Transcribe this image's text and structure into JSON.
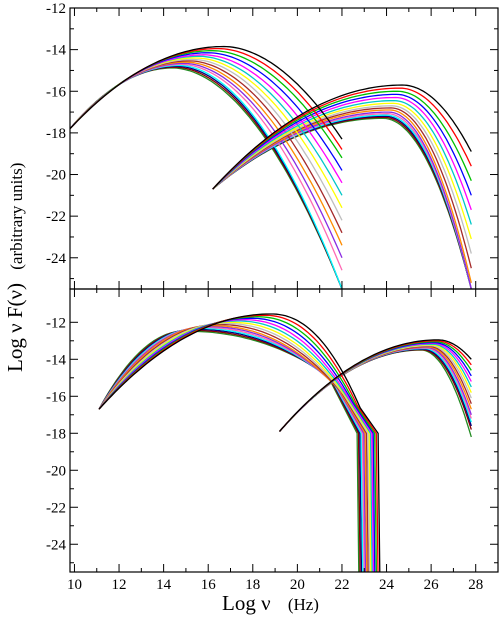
{
  "figure": {
    "ylabel": "Log ν F(ν)",
    "ylabel_units": "(arbitrary units)",
    "xlabel": "Log  ν",
    "xlabel_units": "(Hz)"
  },
  "chart_data": [
    {
      "type": "line",
      "panel": "top",
      "xlim": [
        9.8,
        29.0
      ],
      "ylim": [
        -25.5,
        -12
      ],
      "xticks": [
        10,
        12,
        14,
        16,
        18,
        20,
        22,
        24,
        26,
        28
      ],
      "yticks": [
        -12,
        -14,
        -16,
        -18,
        -20,
        -22,
        -24
      ],
      "ytick_labels": [
        "-12",
        "-14",
        "-16",
        "-18",
        "-20",
        "-22",
        "-24"
      ],
      "x_tick_labels_shown": false,
      "grid": false,
      "colors": [
        "#000000",
        "#ff0000",
        "#00c000",
        "#0000ff",
        "#ff00ff",
        "#00c8c8",
        "#ffff00",
        "#bebebe",
        "#a52a2a",
        "#ff8c00",
        "#8a2be2",
        "#ff69b4",
        "#00ffff",
        "#000080",
        "#8b0000",
        "#228b22"
      ],
      "synchrotron": {
        "x_start": 9.8,
        "x_end": 22,
        "y_at_x_start": -17.8,
        "peak_x": [
          16.7,
          16.45,
          16.2,
          16.0,
          15.8,
          15.6,
          15.45,
          15.3,
          15.15,
          15.0,
          14.9,
          14.8,
          14.7,
          14.6,
          14.5,
          14.4
        ],
        "peak_y": [
          -13.85,
          -13.95,
          -14.05,
          -14.15,
          -14.25,
          -14.32,
          -14.4,
          -14.47,
          -14.54,
          -14.6,
          -14.66,
          -14.71,
          -14.76,
          -14.8,
          -14.84,
          -14.88
        ],
        "end_y": [
          -18.3,
          -18.8,
          -19.2,
          -19.8,
          -20.4,
          -21.0,
          -21.6,
          -22.2,
          -22.8,
          -23.4,
          -24.0,
          -24.6,
          -25.5,
          -25.5,
          -25.5,
          -25.5
        ]
      },
      "inverse_compton": {
        "x_start": 16.2,
        "x_end": 27.8,
        "y_at_x_start": -20.7,
        "peak_x": [
          24.7,
          24.6,
          24.5,
          24.45,
          24.4,
          24.35,
          24.3,
          24.25,
          24.2,
          24.15,
          24.1,
          24.05,
          24.0,
          23.95,
          23.9,
          23.85
        ],
        "peak_y": [
          -15.7,
          -15.85,
          -16.0,
          -16.15,
          -16.3,
          -16.45,
          -16.58,
          -16.7,
          -16.8,
          -16.9,
          -17.0,
          -17.08,
          -17.15,
          -17.2,
          -17.25,
          -17.3
        ],
        "end_y": [
          -18.9,
          -19.6,
          -20.3,
          -21.0,
          -21.7,
          -22.4,
          -23.1,
          -23.8,
          -24.5,
          -25.2,
          -25.5,
          -25.5,
          -25.5,
          -25.5,
          -25.5,
          -25.5
        ]
      }
    },
    {
      "type": "line",
      "panel": "bottom",
      "xlim": [
        9.8,
        29.0
      ],
      "ylim": [
        -25.5,
        -10.2
      ],
      "xticks": [
        10,
        12,
        14,
        16,
        18,
        20,
        22,
        24,
        26,
        28
      ],
      "xtick_labels": [
        "10",
        "12",
        "14",
        "16",
        "18",
        "20",
        "22",
        "24",
        "26",
        "28"
      ],
      "yticks": [
        -12,
        -14,
        -16,
        -18,
        -20,
        -22,
        -24
      ],
      "ytick_labels": [
        "-12",
        "-14",
        "-16",
        "-18",
        "-20",
        "-22",
        "-24"
      ],
      "grid": false,
      "colors": [
        "#000000",
        "#ff0000",
        "#00c000",
        "#0000ff",
        "#ff00ff",
        "#00c8c8",
        "#ffff00",
        "#bebebe",
        "#a52a2a",
        "#ff8c00",
        "#8a2be2",
        "#ff69b4",
        "#00ffff",
        "#000080",
        "#8b0000",
        "#228b22"
      ],
      "synchrotron": {
        "x_start": 11.1,
        "x_end": 23.7,
        "y_at_x_start": -16.7,
        "peak_x": [
          18.8,
          18.5,
          18.2,
          17.9,
          17.6,
          17.3,
          17.0,
          16.7,
          16.4,
          16.1,
          15.9,
          15.7,
          15.5,
          15.3,
          15.1,
          14.9
        ],
        "peak_y": [
          -11.55,
          -11.62,
          -11.7,
          -11.78,
          -11.86,
          -11.93,
          -12.0,
          -12.06,
          -12.12,
          -12.18,
          -12.23,
          -12.28,
          -12.33,
          -12.38,
          -12.43,
          -12.48
        ],
        "cutoff_x": [
          23.7,
          23.62,
          23.55,
          23.48,
          23.42,
          23.36,
          23.3,
          23.24,
          23.18,
          23.12,
          23.06,
          23.0,
          22.94,
          22.88,
          22.82,
          22.76
        ]
      },
      "inverse_compton": {
        "x_start": 19.2,
        "x_end": 27.8,
        "y_at_x_start": -17.9,
        "peak_x": [
          26.3,
          26.25,
          26.2,
          26.15,
          26.1,
          26.05,
          26.0,
          25.95,
          25.9,
          25.85,
          25.8,
          25.75,
          25.7,
          25.65,
          25.6,
          25.55
        ],
        "peak_y": [
          -12.95,
          -13.0,
          -13.05,
          -13.1,
          -13.14,
          -13.18,
          -13.22,
          -13.26,
          -13.3,
          -13.33,
          -13.36,
          -13.39,
          -13.42,
          -13.45,
          -13.48,
          -13.5
        ],
        "end_y": [
          -14.0,
          -14.3,
          -14.6,
          -14.9,
          -15.2,
          -15.5,
          -15.8,
          -16.1,
          -16.4,
          -16.7,
          -17.0,
          -17.2,
          -17.4,
          -17.6,
          -17.8,
          -18.2
        ]
      }
    }
  ]
}
